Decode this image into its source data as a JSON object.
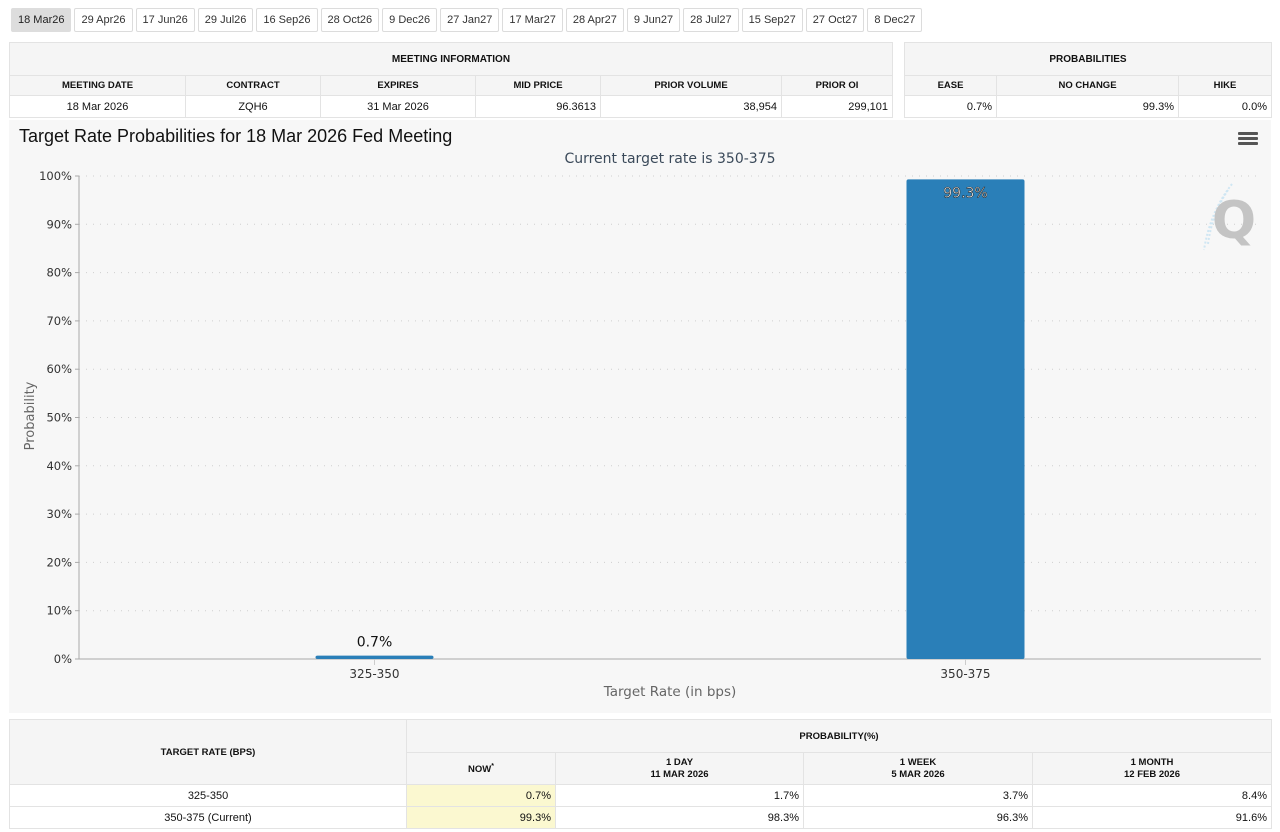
{
  "meeting_tabs": [
    {
      "label": "18 Mar26",
      "active": true
    },
    {
      "label": "29 Apr26"
    },
    {
      "label": "17 Jun26"
    },
    {
      "label": "29 Jul26"
    },
    {
      "label": "16 Sep26"
    },
    {
      "label": "28 Oct26"
    },
    {
      "label": "9 Dec26"
    },
    {
      "label": "27 Jan27"
    },
    {
      "label": "17 Mar27"
    },
    {
      "label": "28 Apr27"
    },
    {
      "label": "9 Jun27"
    },
    {
      "label": "28 Jul27"
    },
    {
      "label": "15 Sep27"
    },
    {
      "label": "27 Oct27"
    },
    {
      "label": "8 Dec27"
    }
  ],
  "meeting_info": {
    "title": "MEETING INFORMATION",
    "headers": [
      "MEETING DATE",
      "CONTRACT",
      "EXPIRES",
      "MID PRICE",
      "PRIOR VOLUME",
      "PRIOR OI"
    ],
    "values": [
      "18 Mar 2026",
      "ZQH6",
      "31 Mar 2026",
      "96.3613",
      "38,954",
      "299,101"
    ]
  },
  "probabilities": {
    "title": "PROBABILITIES",
    "headers": [
      "EASE",
      "NO CHANGE",
      "HIKE"
    ],
    "values": [
      "0.7%",
      "99.3%",
      "0.0%"
    ]
  },
  "chart": {
    "menu_icon": "hamburger-menu-icon",
    "watermark": "Q"
  },
  "chart_data": {
    "type": "bar",
    "title": "Target Rate Probabilities for 18 Mar 2026 Fed Meeting",
    "subtitle": "Current target rate is 350-375",
    "xlabel": "Target Rate (in bps)",
    "ylabel": "Probability",
    "categories": [
      "325-350",
      "350-375"
    ],
    "values": [
      0.7,
      99.3
    ],
    "data_labels": [
      "0.7%",
      "99.3%"
    ],
    "ylim": [
      0,
      100
    ],
    "yticks": [
      0,
      10,
      20,
      30,
      40,
      50,
      60,
      70,
      80,
      90,
      100
    ],
    "ytick_labels": [
      "0%",
      "10%",
      "20%",
      "30%",
      "40%",
      "50%",
      "60%",
      "70%",
      "80%",
      "90%",
      "100%"
    ],
    "grid": true,
    "bar_color": "#2a7fb8",
    "legend": "none"
  },
  "rate_table": {
    "rate_header": "TARGET RATE (BPS)",
    "prob_header": "PROBABILITY(%)",
    "columns": [
      {
        "line1": "NOW",
        "line2": "",
        "note": "*"
      },
      {
        "line1": "1 DAY",
        "line2": "11 MAR 2026"
      },
      {
        "line1": "1 WEEK",
        "line2": "5 MAR 2026"
      },
      {
        "line1": "1 MONTH",
        "line2": "12 FEB 2026"
      }
    ],
    "rows": [
      {
        "rate": "325-350",
        "values": [
          "0.7%",
          "1.7%",
          "3.7%",
          "8.4%"
        ]
      },
      {
        "rate": "350-375 (Current)",
        "values": [
          "99.3%",
          "98.3%",
          "96.3%",
          "91.6%"
        ]
      }
    ]
  }
}
